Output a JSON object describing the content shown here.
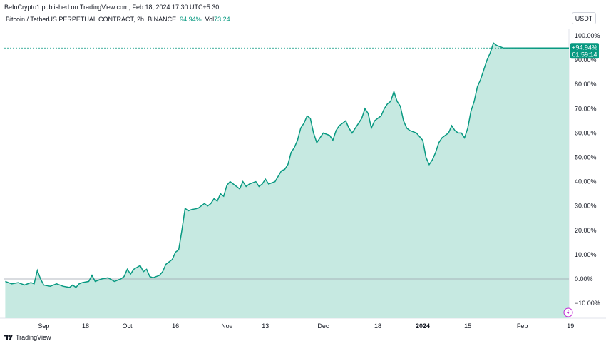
{
  "header": {
    "publish_text": "BeInCrypto1 published on TradingView.com, Feb 18, 2024 17:30 UTC+5:30",
    "symbol": "Bitcoin / TetherUS PERPETUAL CONTRACT, 2h, BINANCE",
    "change": "94.94%",
    "vol_label": "Vol",
    "vol_value": "73.24"
  },
  "currency": "USDT",
  "last_value_badge": {
    "value": "+94.94%",
    "countdown": "01:59:14"
  },
  "footer": {
    "brand": "TradingView"
  },
  "colors": {
    "line": "#089981",
    "area": "#c6e9e1",
    "zero_line": "#9aa0ab",
    "last_line": "#089981",
    "badge": "#089981",
    "lightning_icon": "#c026d3"
  },
  "chart_data": {
    "type": "area",
    "title": "",
    "xlabel": "",
    "ylabel": "",
    "ylim": [
      -16,
      102
    ],
    "y_ticks": [
      "100.00%",
      "90.00%",
      "80.00%",
      "70.00%",
      "60.00%",
      "50.00%",
      "40.00%",
      "30.00%",
      "20.00%",
      "10.00%",
      "0.00%",
      "−10.00%"
    ],
    "y_tick_values": [
      100,
      90,
      80,
      70,
      60,
      50,
      40,
      30,
      20,
      10,
      0,
      -10
    ],
    "x_ticks": [
      {
        "label": "Sep",
        "day": 6,
        "bold": false
      },
      {
        "label": "18",
        "day": 19,
        "bold": false
      },
      {
        "label": "Oct",
        "day": 32,
        "bold": false
      },
      {
        "label": "16",
        "day": 47,
        "bold": false
      },
      {
        "label": "Nov",
        "day": 63,
        "bold": false
      },
      {
        "label": "13",
        "day": 75,
        "bold": false
      },
      {
        "label": "Dec",
        "day": 93,
        "bold": false
      },
      {
        "label": "18",
        "day": 110,
        "bold": false
      },
      {
        "label": "2024",
        "day": 124,
        "bold": true
      },
      {
        "label": "15",
        "day": 138,
        "bold": false
      },
      {
        "label": "Feb",
        "day": 155,
        "bold": false
      },
      {
        "label": "19",
        "day": 170,
        "bold": false
      }
    ],
    "x_range_days": [
      -6.3,
      169.5
    ],
    "last_value": 94.94,
    "series": [
      {
        "points": [
          [
            -6,
            -1
          ],
          [
            -4,
            -2
          ],
          [
            -2,
            -1.5
          ],
          [
            0,
            -2.5
          ],
          [
            2,
            -1.5
          ],
          [
            3,
            -2
          ],
          [
            4,
            3.5
          ],
          [
            5,
            0
          ],
          [
            6,
            -2.5
          ],
          [
            8,
            -3
          ],
          [
            10,
            -2
          ],
          [
            12,
            -3
          ],
          [
            14,
            -3.5
          ],
          [
            15,
            -2.5
          ],
          [
            16,
            -3.5
          ],
          [
            17,
            -2
          ],
          [
            18,
            -1.5
          ],
          [
            20,
            -1
          ],
          [
            21,
            1.5
          ],
          [
            22,
            -1
          ],
          [
            24,
            0
          ],
          [
            26,
            0.5
          ],
          [
            28,
            -1
          ],
          [
            30,
            0
          ],
          [
            31,
            1
          ],
          [
            32,
            4
          ],
          [
            33,
            2
          ],
          [
            34,
            4
          ],
          [
            36,
            5.5
          ],
          [
            37,
            3
          ],
          [
            38,
            4
          ],
          [
            39,
            1
          ],
          [
            40,
            0.5
          ],
          [
            42,
            1.5
          ],
          [
            43,
            3
          ],
          [
            44,
            6
          ],
          [
            45,
            7
          ],
          [
            46,
            8
          ],
          [
            47,
            11
          ],
          [
            48,
            12
          ],
          [
            49,
            20
          ],
          [
            50,
            29
          ],
          [
            51,
            28
          ],
          [
            52,
            28.5
          ],
          [
            54,
            29
          ],
          [
            55,
            30
          ],
          [
            56,
            31
          ],
          [
            57,
            30
          ],
          [
            58,
            31
          ],
          [
            59,
            33
          ],
          [
            60,
            32
          ],
          [
            61,
            35
          ],
          [
            62,
            34
          ],
          [
            63,
            38.5
          ],
          [
            64,
            40
          ],
          [
            65,
            39
          ],
          [
            66,
            38
          ],
          [
            67,
            37
          ],
          [
            68,
            40
          ],
          [
            69,
            38
          ],
          [
            70,
            39
          ],
          [
            72,
            40
          ],
          [
            73,
            38
          ],
          [
            74,
            39
          ],
          [
            75,
            41
          ],
          [
            76,
            39
          ],
          [
            78,
            40
          ],
          [
            80,
            44.5
          ],
          [
            81,
            45
          ],
          [
            82,
            47
          ],
          [
            83,
            52
          ],
          [
            84,
            54
          ],
          [
            85,
            57
          ],
          [
            86,
            62
          ],
          [
            87,
            64
          ],
          [
            88,
            67
          ],
          [
            89,
            66
          ],
          [
            90,
            60
          ],
          [
            91,
            56
          ],
          [
            92,
            58
          ],
          [
            93,
            60
          ],
          [
            95,
            59
          ],
          [
            96,
            57
          ],
          [
            97,
            61
          ],
          [
            98,
            63
          ],
          [
            99,
            64
          ],
          [
            100,
            65
          ],
          [
            101,
            62
          ],
          [
            102,
            60
          ],
          [
            103,
            62
          ],
          [
            104,
            64
          ],
          [
            105,
            66
          ],
          [
            106,
            70
          ],
          [
            107,
            68
          ],
          [
            108,
            62
          ],
          [
            109,
            65
          ],
          [
            110,
            66
          ],
          [
            111,
            67
          ],
          [
            112,
            70
          ],
          [
            113,
            72
          ],
          [
            114,
            73
          ],
          [
            115,
            77
          ],
          [
            116,
            73
          ],
          [
            117,
            71
          ],
          [
            118,
            65
          ],
          [
            119,
            62
          ],
          [
            120,
            61
          ],
          [
            122,
            60
          ],
          [
            124,
            57
          ],
          [
            125,
            50
          ],
          [
            126,
            47
          ],
          [
            127,
            49
          ],
          [
            128,
            52
          ],
          [
            129,
            56
          ],
          [
            130,
            58
          ],
          [
            132,
            60
          ],
          [
            133,
            63
          ],
          [
            134,
            61
          ],
          [
            135,
            60
          ],
          [
            136,
            60
          ],
          [
            137,
            58
          ],
          [
            138,
            62
          ],
          [
            139,
            69
          ],
          [
            140,
            73
          ],
          [
            141,
            79
          ],
          [
            142,
            82
          ],
          [
            143,
            86
          ],
          [
            144,
            90
          ],
          [
            145,
            93
          ],
          [
            146,
            97
          ],
          [
            147,
            96
          ],
          [
            148,
            95.5
          ],
          [
            149,
            95
          ],
          [
            169.5,
            94.94
          ]
        ]
      }
    ]
  }
}
